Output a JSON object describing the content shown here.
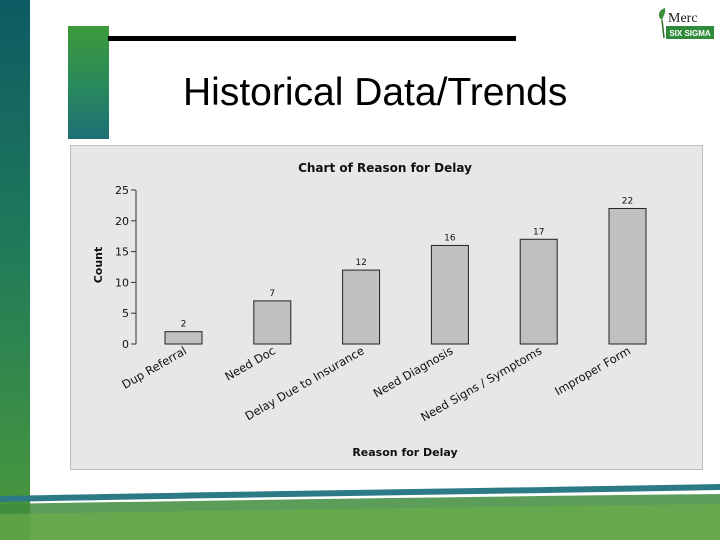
{
  "slide": {
    "title": "Historical Data/Trends",
    "logo_text_top": "Merc",
    "logo_text_bottom": "SIX SIGMA"
  },
  "colors": {
    "sidebar": "#1a6e66",
    "accent_green": "#3d9a3a",
    "chart_background": "#e7e7e7",
    "bar_fill": "#c0c0c0",
    "bar_stroke": "#222222"
  },
  "chart_data": {
    "type": "bar",
    "title": "Chart of Reason for Delay",
    "xlabel": "Reason for Delay",
    "ylabel": "Count",
    "ylim": [
      0,
      25
    ],
    "yticks": [
      0,
      5,
      10,
      15,
      20,
      25
    ],
    "categories": [
      "Dup Referral",
      "Need Doc",
      "Delay Due to Insurance",
      "Need Diagnosis",
      "Need Signs / Symptoms",
      "Improper Form"
    ],
    "values": [
      2,
      7,
      12,
      16,
      17,
      22
    ],
    "data_labels": [
      "2",
      "7",
      "12",
      "16",
      "17",
      "22"
    ],
    "grid": false,
    "legend": "none"
  }
}
